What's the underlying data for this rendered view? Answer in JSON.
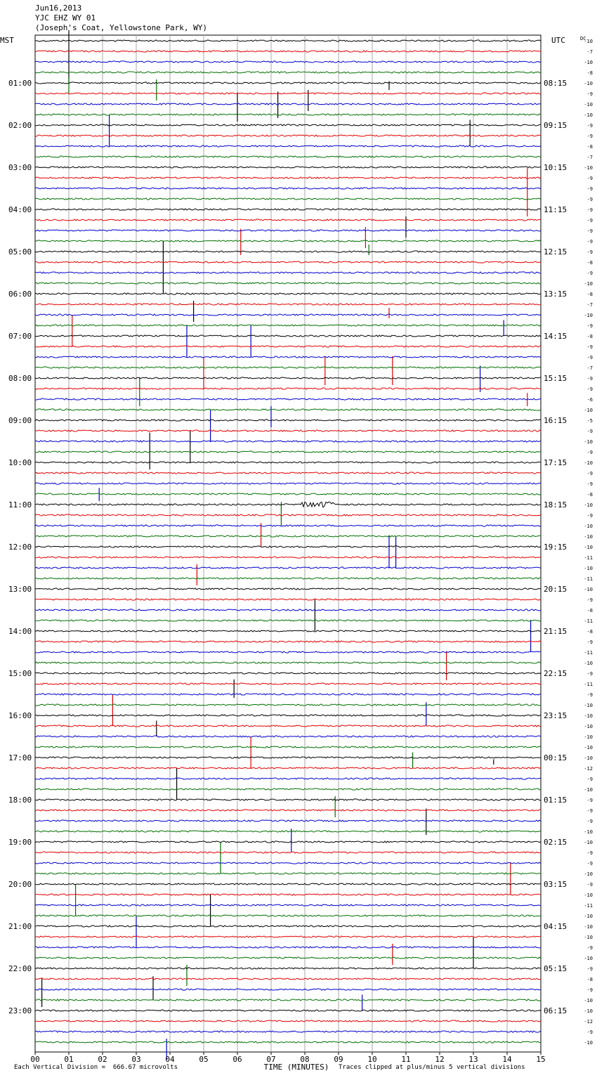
{
  "header": {
    "date": "Jun16,2013",
    "station": "YJC EHZ WY 01",
    "location": "(Joseph's Coat, Yellowstone Park, WY)"
  },
  "chart_data": {
    "type": "line",
    "title": "",
    "left_axis_label": "MST",
    "right_axis_label": "UTC",
    "dc_label": "DC",
    "xlabel": "TIME (MINUTES)",
    "xlim": [
      0,
      15
    ],
    "x_ticks": [
      "00",
      "01",
      "02",
      "03",
      "04",
      "05",
      "06",
      "07",
      "08",
      "09",
      "10",
      "11",
      "12",
      "13",
      "14",
      "15"
    ],
    "trace_colors": [
      "#000000",
      "#e60000",
      "#0000d0",
      "#007000"
    ],
    "trace_count": 96,
    "grid": true,
    "mst_labels": [
      "01:00",
      "02:00",
      "03:00",
      "04:00",
      "05:00",
      "06:00",
      "07:00",
      "08:00",
      "09:00",
      "10:00",
      "11:00",
      "12:00",
      "13:00",
      "14:00",
      "15:00",
      "16:00",
      "17:00",
      "18:00",
      "19:00",
      "20:00",
      "21:00",
      "22:00",
      "23:00"
    ],
    "utc_labels": [
      "08:15",
      "09:15",
      "10:15",
      "11:15",
      "12:15",
      "13:15",
      "14:15",
      "15:15",
      "16:15",
      "17:15",
      "18:15",
      "19:15",
      "20:15",
      "21:15",
      "22:15",
      "23:15",
      "00:15",
      "01:15",
      "02:15",
      "03:15",
      "04:15",
      "05:15",
      "06:15"
    ],
    "dc_offsets": [
      "-10",
      "-7",
      "-10",
      "-8",
      "-10",
      "-9",
      "-10",
      "-10",
      "-9",
      "-9",
      "-8",
      "-7",
      "-10",
      "-9",
      "-9",
      "-9",
      "-9",
      "-9",
      "-9",
      "-9",
      "-9",
      "-8",
      "-9",
      "-10",
      "-8",
      "-7",
      "-10",
      "-9",
      "-8",
      "-9",
      "-9",
      "-7",
      "-9",
      "-9",
      "-6",
      "-10",
      "-5",
      "-9",
      "-10",
      "-9",
      "-10",
      "-9",
      "-9",
      "-8",
      "-10",
      "-9",
      "-10",
      "-10",
      "-10",
      "-11",
      "-10",
      "-11",
      "-10",
      "-9",
      "-8",
      "-11",
      "-8",
      "-9",
      "-11",
      "-10",
      "-9",
      "-11",
      "-9",
      "-10",
      "-10",
      "-10",
      "-10",
      "-10",
      "-10",
      "-12",
      "-9",
      "-10",
      "-9",
      "-9",
      "-9",
      "-10",
      "-10",
      "-9",
      "-9",
      "-10",
      "-9",
      "-10",
      "-11",
      "-10",
      "-10",
      "-10",
      "-9",
      "-10",
      "-9",
      "-8",
      "-9",
      "-10",
      "-10",
      "-12",
      "-9",
      "-10"
    ],
    "spikes": [
      {
        "trace": 0,
        "minute": 1.0,
        "amp": 60
      },
      {
        "trace": 3,
        "minute": 1.0,
        "amp": -30
      },
      {
        "trace": 3,
        "minute": 3.6,
        "amp": -40
      },
      {
        "trace": 4,
        "minute": 6.0,
        "amp": -55
      },
      {
        "trace": 4,
        "minute": 7.2,
        "amp": -50
      },
      {
        "trace": 4,
        "minute": 8.1,
        "amp": -40
      },
      {
        "trace": 4,
        "minute": 10.5,
        "amp": 10
      },
      {
        "trace": 6,
        "minute": 2.2,
        "amp": -60
      },
      {
        "trace": 8,
        "minute": 12.9,
        "amp": 30
      },
      {
        "trace": 13,
        "minute": 14.6,
        "amp": 55
      },
      {
        "trace": 16,
        "minute": 11.0,
        "amp": -40
      },
      {
        "trace": 17,
        "minute": 6.1,
        "amp": -50
      },
      {
        "trace": 17,
        "minute": 9.8,
        "amp": -40
      },
      {
        "trace": 19,
        "minute": 9.9,
        "amp": -20
      },
      {
        "trace": 20,
        "minute": 3.8,
        "amp": 60
      },
      {
        "trace": 24,
        "minute": 4.7,
        "amp": -40
      },
      {
        "trace": 25,
        "minute": 1.1,
        "amp": -60
      },
      {
        "trace": 25,
        "minute": 10.5,
        "amp": -20
      },
      {
        "trace": 26,
        "minute": 4.5,
        "amp": -60
      },
      {
        "trace": 26,
        "minute": 6.4,
        "amp": -60
      },
      {
        "trace": 26,
        "minute": 13.9,
        "amp": -30
      },
      {
        "trace": 29,
        "minute": 5.0,
        "amp": -60
      },
      {
        "trace": 29,
        "minute": 10.6,
        "amp": -55
      },
      {
        "trace": 29,
        "minute": 8.6,
        "amp": -55
      },
      {
        "trace": 30,
        "minute": 13.2,
        "amp": -50
      },
      {
        "trace": 31,
        "minute": 3.1,
        "amp": -55
      },
      {
        "trace": 33,
        "minute": 14.6,
        "amp": -25
      },
      {
        "trace": 34,
        "minute": 7.0,
        "amp": -40
      },
      {
        "trace": 36,
        "minute": 3.4,
        "amp": -70
      },
      {
        "trace": 34,
        "minute": 5.2,
        "amp": -60
      },
      {
        "trace": 36,
        "minute": 4.6,
        "amp": -60
      },
      {
        "trace": 42,
        "minute": 1.9,
        "amp": -25
      },
      {
        "trace": 43,
        "minute": 7.3,
        "amp": -45
      },
      {
        "trace": 46,
        "minute": 10.5,
        "amp": -60
      },
      {
        "trace": 46,
        "minute": 10.7,
        "amp": -60
      },
      {
        "trace": 45,
        "minute": 6.7,
        "amp": -45
      },
      {
        "trace": 49,
        "minute": 4.8,
        "amp": -40
      },
      {
        "trace": 52,
        "minute": 8.3,
        "amp": -60
      },
      {
        "trace": 54,
        "minute": 14.7,
        "amp": -60
      },
      {
        "trace": 57,
        "minute": 12.2,
        "amp": -55
      },
      {
        "trace": 60,
        "minute": 5.9,
        "amp": -35
      },
      {
        "trace": 61,
        "minute": 2.3,
        "amp": -60
      },
      {
        "trace": 62,
        "minute": 11.6,
        "amp": -45
      },
      {
        "trace": 64,
        "minute": 3.6,
        "amp": -30
      },
      {
        "trace": 65,
        "minute": 6.4,
        "amp": -60
      },
      {
        "trace": 67,
        "minute": 11.2,
        "amp": -30
      },
      {
        "trace": 68,
        "minute": 4.2,
        "amp": -60
      },
      {
        "trace": 68,
        "minute": 13.6,
        "amp": -10
      },
      {
        "trace": 71,
        "minute": 8.9,
        "amp": -40
      },
      {
        "trace": 72,
        "minute": 11.6,
        "amp": -50
      },
      {
        "trace": 74,
        "minute": 7.6,
        "amp": -45
      },
      {
        "trace": 75,
        "minute": 5.5,
        "amp": -60
      },
      {
        "trace": 77,
        "minute": 14.1,
        "amp": -60
      },
      {
        "trace": 79,
        "minute": 1.2,
        "amp": -60
      },
      {
        "trace": 80,
        "minute": 5.2,
        "amp": -60
      },
      {
        "trace": 82,
        "minute": 3.0,
        "amp": -60
      },
      {
        "trace": 84,
        "minute": 13.0,
        "amp": -60
      },
      {
        "trace": 87,
        "minute": 4.5,
        "amp": -40
      },
      {
        "trace": 85,
        "minute": 10.6,
        "amp": -40
      },
      {
        "trace": 88,
        "minute": 0.2,
        "amp": -55
      },
      {
        "trace": 88,
        "minute": 3.5,
        "amp": -45
      },
      {
        "trace": 90,
        "minute": 9.7,
        "amp": -30
      },
      {
        "trace": 94,
        "minute": 3.9,
        "amp": -40
      }
    ],
    "quake": {
      "trace": 44,
      "start_minute": 7.8,
      "end_minute": 8.9
    }
  },
  "footer": {
    "scale_note": "Each Vertical Division =  666.67 microvolts",
    "clip_note": "Traces clipped at plus/minus 5 vertical divisions"
  }
}
